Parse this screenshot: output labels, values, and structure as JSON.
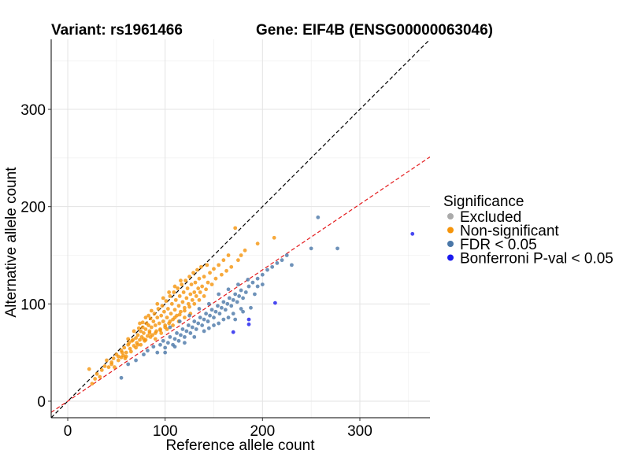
{
  "chart_data": {
    "type": "scatter",
    "title_left": "Variant: rs1961466",
    "title_right": "Gene: EIF4B (ENSG00000063046)",
    "xlabel": "Reference allele count",
    "ylabel": "Alternative allele count",
    "xlim": [
      -17,
      372
    ],
    "ylim": [
      -17,
      372
    ],
    "x_ticks": [
      0,
      100,
      200,
      300
    ],
    "y_ticks": [
      0,
      100,
      200,
      300
    ],
    "x_tick_labels": [
      "0",
      "100",
      "200",
      "300"
    ],
    "y_tick_labels": [
      "0",
      "100",
      "200",
      "300"
    ],
    "grid": true,
    "reference_lines": [
      {
        "name": "equal ratio",
        "slope": 1.0,
        "intercept": 0,
        "color": "#000000",
        "dash": true
      },
      {
        "name": "fitted ratio",
        "slope": 0.675,
        "intercept": 0,
        "color": "#e41a1c",
        "dash": true
      }
    ],
    "legend": {
      "title": "Significance",
      "position": "right",
      "entries": [
        {
          "label": "Excluded",
          "color": "#aaaaaa"
        },
        {
          "label": "Non-significant",
          "color": "#f5940a"
        },
        {
          "label": "FDR < 0.05",
          "color": "#4a77a8"
        },
        {
          "label": "Bonferroni P-val < 0.05",
          "color": "#1a1aee"
        }
      ]
    },
    "series": [
      {
        "name": "Non-significant",
        "color": "#f5940a",
        "points": [
          [
            22,
            33
          ],
          [
            25,
            18
          ],
          [
            28,
            23
          ],
          [
            30,
            28
          ],
          [
            33,
            25
          ],
          [
            35,
            32
          ],
          [
            38,
            36
          ],
          [
            40,
            42
          ],
          [
            42,
            35
          ],
          [
            45,
            40
          ],
          [
            47,
            44
          ],
          [
            50,
            48
          ],
          [
            52,
            42
          ],
          [
            55,
            52
          ],
          [
            57,
            47
          ],
          [
            58,
            55
          ],
          [
            60,
            50
          ],
          [
            62,
            58
          ],
          [
            64,
            54
          ],
          [
            66,
            62
          ],
          [
            68,
            57
          ],
          [
            70,
            65
          ],
          [
            71,
            60
          ],
          [
            72,
            68
          ],
          [
            74,
            63
          ],
          [
            75,
            72
          ],
          [
            76,
            66
          ],
          [
            77,
            76
          ],
          [
            78,
            70
          ],
          [
            79,
            62
          ],
          [
            80,
            74
          ],
          [
            81,
            80
          ],
          [
            82,
            67
          ],
          [
            83,
            78
          ],
          [
            84,
            72
          ],
          [
            85,
            85
          ],
          [
            86,
            76
          ],
          [
            87,
            68
          ],
          [
            88,
            82
          ],
          [
            89,
            90
          ],
          [
            90,
            78
          ],
          [
            91,
            72
          ],
          [
            92,
            86
          ],
          [
            93,
            95
          ],
          [
            94,
            80
          ],
          [
            95,
            74
          ],
          [
            96,
            88
          ],
          [
            97,
            98
          ],
          [
            98,
            82
          ],
          [
            99,
            92
          ],
          [
            100,
            76
          ],
          [
            101,
            103
          ],
          [
            102,
            86
          ],
          [
            103,
            95
          ],
          [
            104,
            80
          ],
          [
            105,
            108
          ],
          [
            106,
            90
          ],
          [
            107,
            100
          ],
          [
            108,
            84
          ],
          [
            109,
            112
          ],
          [
            110,
            94
          ],
          [
            111,
            104
          ],
          [
            112,
            88
          ],
          [
            113,
            116
          ],
          [
            114,
            98
          ],
          [
            115,
            108
          ],
          [
            116,
            92
          ],
          [
            117,
            120
          ],
          [
            118,
            102
          ],
          [
            119,
            112
          ],
          [
            120,
            96
          ],
          [
            121,
            124
          ],
          [
            122,
            106
          ],
          [
            123,
            116
          ],
          [
            124,
            100
          ],
          [
            125,
            128
          ],
          [
            126,
            110
          ],
          [
            127,
            120
          ],
          [
            128,
            104
          ],
          [
            129,
            132
          ],
          [
            130,
            112
          ],
          [
            131,
            122
          ],
          [
            132,
            108
          ],
          [
            133,
            135
          ],
          [
            134,
            116
          ],
          [
            135,
            126
          ],
          [
            136,
            112
          ],
          [
            137,
            138
          ],
          [
            138,
            118
          ],
          [
            140,
            128
          ],
          [
            142,
            115
          ],
          [
            143,
            140
          ],
          [
            144,
            122
          ],
          [
            146,
            132
          ],
          [
            148,
            120
          ],
          [
            150,
            136
          ],
          [
            152,
            126
          ],
          [
            155,
            140
          ],
          [
            158,
            130
          ],
          [
            160,
            145
          ],
          [
            163,
            134
          ],
          [
            165,
            150
          ],
          [
            168,
            138
          ],
          [
            172,
            178
          ],
          [
            175,
            145
          ],
          [
            178,
            150
          ],
          [
            182,
            155
          ],
          [
            195,
            162
          ],
          [
            212,
            168
          ],
          [
            55,
            45
          ],
          [
            60,
            46
          ],
          [
            65,
            51
          ],
          [
            70,
            55
          ],
          [
            75,
            58
          ],
          [
            80,
            63
          ],
          [
            85,
            66
          ],
          [
            90,
            70
          ],
          [
            95,
            73
          ],
          [
            100,
            78
          ],
          [
            105,
            82
          ],
          [
            110,
            86
          ],
          [
            115,
            89
          ],
          [
            120,
            93
          ],
          [
            125,
            97
          ],
          [
            130,
            100
          ],
          [
            135,
            104
          ],
          [
            140,
            108
          ],
          [
            62,
            64
          ],
          [
            68,
            72
          ],
          [
            74,
            80
          ],
          [
            80,
            86
          ],
          [
            86,
            93
          ],
          [
            92,
            100
          ],
          [
            98,
            106
          ],
          [
            104,
            112
          ],
          [
            110,
            118
          ],
          [
            116,
            124
          ],
          [
            72,
            58
          ],
          [
            78,
            64
          ],
          [
            84,
            70
          ],
          [
            90,
            64
          ],
          [
            96,
            70
          ],
          [
            102,
            74
          ],
          [
            108,
            78
          ],
          [
            114,
            82
          ],
          [
            120,
            86
          ],
          [
            126,
            90
          ],
          [
            45,
            38
          ],
          [
            48,
            35
          ],
          [
            52,
            46
          ],
          [
            56,
            50
          ],
          [
            59,
            44
          ],
          [
            63,
            60
          ],
          [
            67,
            63
          ],
          [
            73,
            75
          ],
          [
            77,
            81
          ],
          [
            83,
            88
          ]
        ]
      },
      {
        "name": "FDR < 0.05",
        "color": "#4a77a8",
        "points": [
          [
            55,
            24
          ],
          [
            62,
            38
          ],
          [
            70,
            42
          ],
          [
            78,
            48
          ],
          [
            82,
            52
          ],
          [
            88,
            56
          ],
          [
            92,
            50
          ],
          [
            95,
            58
          ],
          [
            98,
            62
          ],
          [
            100,
            55
          ],
          [
            103,
            60
          ],
          [
            105,
            66
          ],
          [
            108,
            58
          ],
          [
            110,
            64
          ],
          [
            112,
            70
          ],
          [
            114,
            62
          ],
          [
            116,
            68
          ],
          [
            118,
            74
          ],
          [
            120,
            66
          ],
          [
            122,
            72
          ],
          [
            124,
            78
          ],
          [
            126,
            70
          ],
          [
            128,
            76
          ],
          [
            130,
            82
          ],
          [
            132,
            74
          ],
          [
            134,
            80
          ],
          [
            136,
            86
          ],
          [
            138,
            78
          ],
          [
            140,
            84
          ],
          [
            142,
            90
          ],
          [
            144,
            82
          ],
          [
            146,
            88
          ],
          [
            148,
            94
          ],
          [
            150,
            86
          ],
          [
            152,
            92
          ],
          [
            154,
            98
          ],
          [
            156,
            90
          ],
          [
            158,
            96
          ],
          [
            160,
            102
          ],
          [
            162,
            94
          ],
          [
            164,
            100
          ],
          [
            166,
            106
          ],
          [
            168,
            98
          ],
          [
            170,
            104
          ],
          [
            172,
            110
          ],
          [
            174,
            102
          ],
          [
            176,
            108
          ],
          [
            178,
            114
          ],
          [
            180,
            106
          ],
          [
            183,
            112
          ],
          [
            186,
            118
          ],
          [
            190,
            122
          ],
          [
            195,
            126
          ],
          [
            200,
            130
          ],
          [
            205,
            135
          ],
          [
            210,
            138
          ],
          [
            215,
            142
          ],
          [
            220,
            145
          ],
          [
            225,
            150
          ],
          [
            230,
            140
          ],
          [
            250,
            157
          ],
          [
            257,
            189
          ],
          [
            277,
            157
          ],
          [
            180,
            92
          ],
          [
            188,
            96
          ],
          [
            170,
            90
          ],
          [
            160,
            84
          ],
          [
            150,
            78
          ],
          [
            140,
            72
          ],
          [
            130,
            66
          ],
          [
            120,
            60
          ],
          [
            110,
            56
          ],
          [
            100,
            50
          ],
          [
            135,
            95
          ],
          [
            145,
            100
          ],
          [
            155,
            110
          ],
          [
            165,
            115
          ],
          [
            175,
            120
          ],
          [
            185,
            125
          ],
          [
            195,
            118
          ],
          [
            125,
            88
          ],
          [
            115,
            82
          ],
          [
            105,
            76
          ],
          [
            145,
            75
          ],
          [
            155,
            80
          ],
          [
            165,
            86
          ],
          [
            172,
            84
          ],
          [
            178,
            95
          ],
          [
            192,
            110
          ],
          [
            200,
            120
          ]
        ]
      },
      {
        "name": "Bonferroni P-val < 0.05",
        "color": "#1a1aee",
        "points": [
          [
            170,
            71
          ],
          [
            186,
            84
          ],
          [
            186,
            79
          ],
          [
            213,
            101
          ],
          [
            354,
            172
          ]
        ]
      }
    ]
  }
}
